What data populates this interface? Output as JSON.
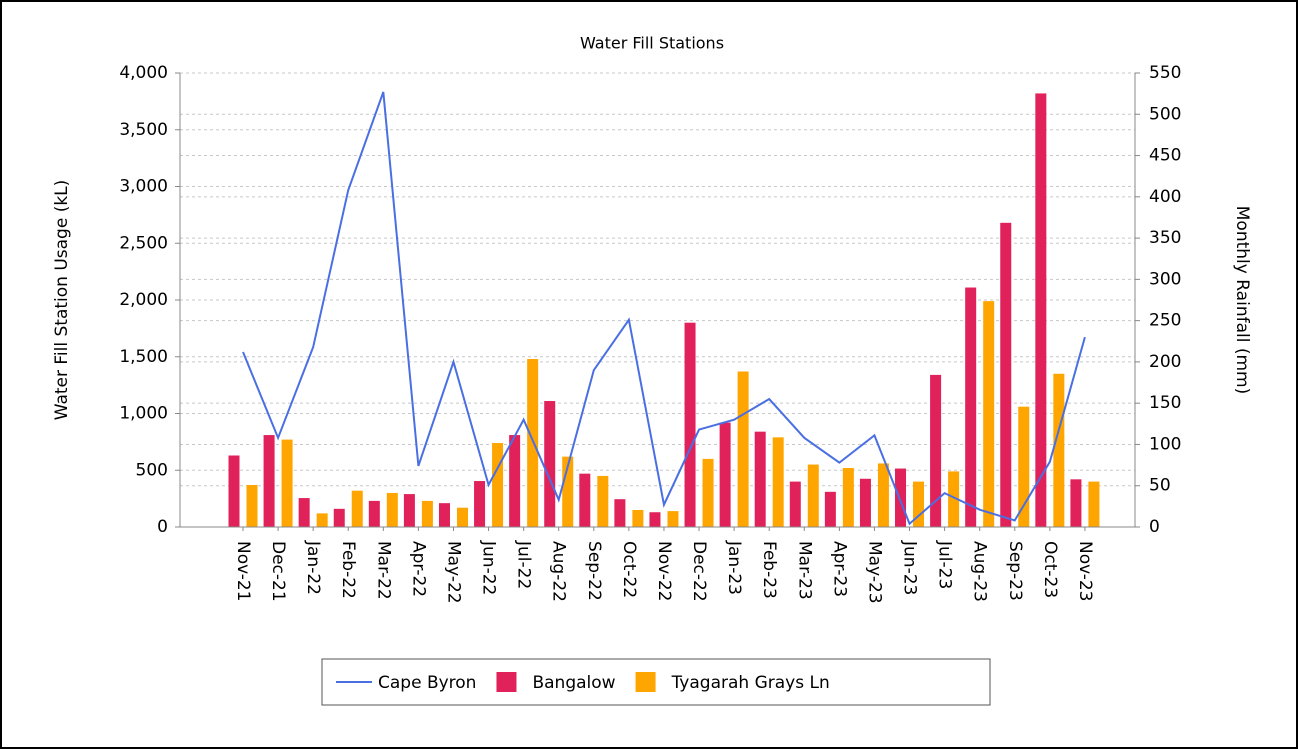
{
  "chart_data": {
    "type": "bar-line",
    "title": "Water Fill Stations",
    "y_label": "Water Fill Station Usage (kL)",
    "y2_label": "Monthly Rainfall (mm)",
    "categories": [
      "Nov-21",
      "Dec-21",
      "Jan-22",
      "Feb-22",
      "Mar-22",
      "Apr-22",
      "May-22",
      "Jun-22",
      "Jul-22",
      "Aug-22",
      "Sep-22",
      "Oct-22",
      "Nov-22",
      "Dec-22",
      "Jan-23",
      "Feb-23",
      "Mar-23",
      "Apr-23",
      "May-23",
      "Jun-23",
      "Jul-23",
      "Aug-23",
      "Sep-23",
      "Oct-23",
      "Nov-23"
    ],
    "series": [
      {
        "name": "Cape Byron",
        "type": "line",
        "axis": "y2",
        "color": "#4a6fe3",
        "values": [
          212,
          108,
          218,
          408,
          527,
          74,
          200,
          51,
          130,
          33,
          190,
          251,
          27,
          118,
          130,
          155,
          108,
          78,
          111,
          4,
          41,
          21,
          8,
          79,
          230
        ]
      },
      {
        "name": "Bangalow",
        "type": "bar",
        "color": "#e0215a",
        "values": [
          630,
          810,
          255,
          160,
          230,
          290,
          210,
          405,
          810,
          1110,
          470,
          245,
          130,
          1800,
          920,
          840,
          400,
          310,
          425,
          515,
          1340,
          2110,
          2680,
          3820,
          420
        ]
      },
      {
        "name": "Tyagarah Grays Ln",
        "type": "bar",
        "color": "#ffa500",
        "values": [
          370,
          770,
          120,
          320,
          300,
          230,
          170,
          740,
          1480,
          620,
          450,
          150,
          140,
          600,
          1370,
          790,
          550,
          520,
          560,
          400,
          490,
          1990,
          1060,
          1350,
          400
        ]
      }
    ],
    "ylim": [
      0,
      4000
    ],
    "yticks": [
      0,
      500,
      {
        "value": 1000,
        "label": "1,000"
      },
      {
        "value": 1500,
        "label": "1,500"
      },
      {
        "value": 2000,
        "label": "2,000"
      },
      {
        "value": 2500,
        "label": "2,500"
      },
      {
        "value": 3000,
        "label": "3,000"
      },
      {
        "value": 3500,
        "label": "3,500"
      },
      {
        "value": 4000,
        "label": "4,000"
      }
    ],
    "y2lim": [
      0,
      550
    ],
    "y2ticks": [
      0,
      50,
      100,
      150,
      200,
      250,
      300,
      350,
      400,
      450,
      500,
      550
    ],
    "grid": true,
    "legend": "bottom"
  }
}
